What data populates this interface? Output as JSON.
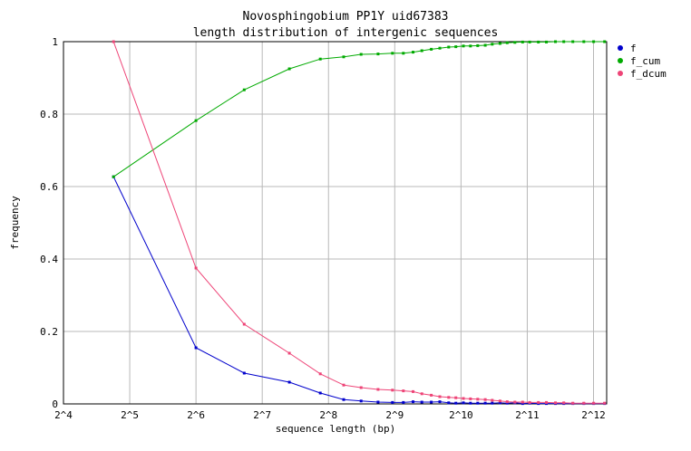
{
  "chart_data": {
    "type": "line",
    "title": "Novosphingobium PP1Y uid67383",
    "subtitle": "length distribution of intergenic sequences",
    "xlabel": "sequence length (bp)",
    "ylabel": "frequency",
    "x_scale": "log2",
    "xlim": [
      16,
      4700
    ],
    "ylim": [
      0,
      1
    ],
    "x_ticks": [
      {
        "value": 16,
        "label": "2^4"
      },
      {
        "value": 32,
        "label": "2^5"
      },
      {
        "value": 64,
        "label": "2^6"
      },
      {
        "value": 128,
        "label": "2^7"
      },
      {
        "value": 256,
        "label": "2^8"
      },
      {
        "value": 512,
        "label": "2^9"
      },
      {
        "value": 1024,
        "label": "2^10"
      },
      {
        "value": 2048,
        "label": "2^11"
      },
      {
        "value": 4096,
        "label": "2^12"
      }
    ],
    "y_ticks": [
      {
        "value": 0,
        "label": "0"
      },
      {
        "value": 0.2,
        "label": "0.2"
      },
      {
        "value": 0.4,
        "label": "0.4"
      },
      {
        "value": 0.6,
        "label": "0.6"
      },
      {
        "value": 0.8,
        "label": "0.8"
      },
      {
        "value": 1,
        "label": "1"
      }
    ],
    "grid": true,
    "legend_position": "right",
    "series": [
      {
        "name": "f",
        "color": "#0000cc",
        "points": [
          [
            27,
            0.627
          ],
          [
            64,
            0.155
          ],
          [
            106,
            0.085
          ],
          [
            170,
            0.06
          ],
          [
            235,
            0.03
          ],
          [
            300,
            0.012
          ],
          [
            360,
            0.008
          ],
          [
            430,
            0.005
          ],
          [
            500,
            0.004
          ],
          [
            560,
            0.004
          ],
          [
            620,
            0.006
          ],
          [
            680,
            0.005
          ],
          [
            750,
            0.005
          ],
          [
            820,
            0.006
          ],
          [
            900,
            0.003
          ],
          [
            970,
            0.002
          ],
          [
            1050,
            0.003
          ],
          [
            1130,
            0.002
          ],
          [
            1220,
            0.002
          ],
          [
            1320,
            0.002
          ],
          [
            1420,
            0.002
          ],
          [
            1540,
            0.003
          ],
          [
            1660,
            0.002
          ],
          [
            1800,
            0.003
          ],
          [
            1950,
            0.001
          ],
          [
            2100,
            0.002
          ],
          [
            2300,
            0.001
          ],
          [
            2500,
            0.001
          ],
          [
            2750,
            0.001
          ],
          [
            3000,
            0.001
          ],
          [
            3300,
            0.001
          ],
          [
            3700,
            0.001
          ],
          [
            4100,
            0.001
          ],
          [
            4600,
            0.001
          ]
        ]
      },
      {
        "name": "f_cum",
        "color": "#00aa00",
        "points": [
          [
            27,
            0.627
          ],
          [
            64,
            0.782
          ],
          [
            106,
            0.867
          ],
          [
            170,
            0.925
          ],
          [
            235,
            0.952
          ],
          [
            300,
            0.958
          ],
          [
            360,
            0.965
          ],
          [
            430,
            0.966
          ],
          [
            500,
            0.968
          ],
          [
            560,
            0.968
          ],
          [
            620,
            0.971
          ],
          [
            680,
            0.975
          ],
          [
            750,
            0.979
          ],
          [
            820,
            0.982
          ],
          [
            900,
            0.985
          ],
          [
            970,
            0.986
          ],
          [
            1050,
            0.988
          ],
          [
            1130,
            0.988
          ],
          [
            1220,
            0.989
          ],
          [
            1320,
            0.99
          ],
          [
            1420,
            0.993
          ],
          [
            1540,
            0.995
          ],
          [
            1660,
            0.997
          ],
          [
            1800,
            0.998
          ],
          [
            1950,
            0.999
          ],
          [
            2100,
            0.999
          ],
          [
            2300,
            0.999
          ],
          [
            2500,
            0.999
          ],
          [
            2750,
            1.0
          ],
          [
            3000,
            1.0
          ],
          [
            3300,
            1.0
          ],
          [
            3700,
            1.0
          ],
          [
            4100,
            1.0
          ],
          [
            4600,
            1.0
          ]
        ]
      },
      {
        "name": "f_dcum",
        "color": "#ee4477",
        "points": [
          [
            27,
            1.0
          ],
          [
            64,
            0.375
          ],
          [
            106,
            0.22
          ],
          [
            170,
            0.14
          ],
          [
            235,
            0.083
          ],
          [
            300,
            0.052
          ],
          [
            360,
            0.045
          ],
          [
            430,
            0.04
          ],
          [
            500,
            0.038
          ],
          [
            560,
            0.036
          ],
          [
            620,
            0.034
          ],
          [
            680,
            0.028
          ],
          [
            750,
            0.024
          ],
          [
            820,
            0.02
          ],
          [
            900,
            0.018
          ],
          [
            970,
            0.017
          ],
          [
            1050,
            0.015
          ],
          [
            1130,
            0.014
          ],
          [
            1220,
            0.013
          ],
          [
            1320,
            0.012
          ],
          [
            1420,
            0.01
          ],
          [
            1540,
            0.008
          ],
          [
            1660,
            0.006
          ],
          [
            1800,
            0.005
          ],
          [
            1950,
            0.005
          ],
          [
            2100,
            0.004
          ],
          [
            2300,
            0.004
          ],
          [
            2500,
            0.004
          ],
          [
            2750,
            0.003
          ],
          [
            3000,
            0.003
          ],
          [
            3300,
            0.002
          ],
          [
            3700,
            0.002
          ],
          [
            4100,
            0.002
          ],
          [
            4600,
            0.002
          ]
        ]
      }
    ]
  }
}
